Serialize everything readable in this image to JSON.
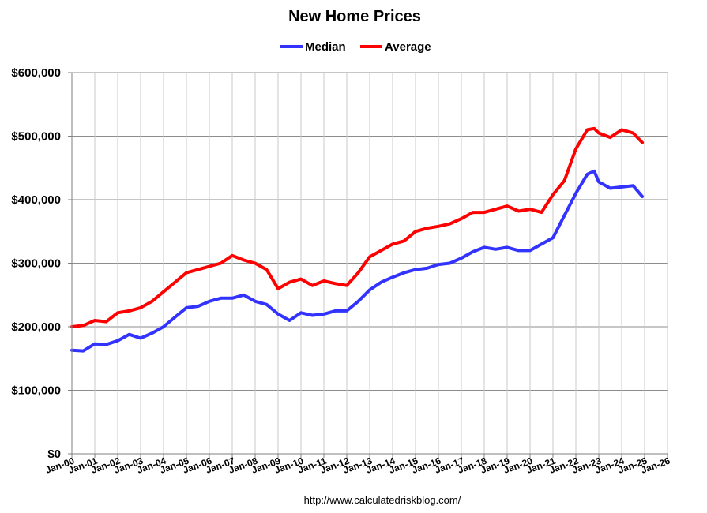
{
  "chart_data": {
    "type": "line",
    "title": "New Home Prices",
    "source_text": "http://www.calculatedriskblog.com/",
    "y_tick_labels": [
      "$0",
      "$100,000",
      "$200,000",
      "$300,000",
      "$400,000",
      "$500,000",
      "$600,000"
    ],
    "y_ticks": [
      0,
      100000,
      200000,
      300000,
      400000,
      500000,
      600000
    ],
    "ylim": [
      0,
      600000
    ],
    "x_tick_labels": [
      "Jan-00",
      "Jan-01",
      "Jan-02",
      "Jan-03",
      "Jan-04",
      "Jan-05",
      "Jan-06",
      "Jan-07",
      "Jan-08",
      "Jan-09",
      "Jan-10",
      "Jan-11",
      "Jan-12",
      "Jan-13",
      "Jan-14",
      "Jan-15",
      "Jan-16",
      "Jan-17",
      "Jan-18",
      "Jan-19",
      "Jan-20",
      "Jan-21",
      "Jan-22",
      "Jan-23",
      "Jan-24",
      "Jan-25",
      "Jan-26"
    ],
    "xlim": [
      2000,
      2026
    ],
    "grid": true,
    "legend_position": "top-center",
    "series": [
      {
        "name": "Median",
        "color": "#3333ff",
        "x": [
          2000.0,
          2000.5,
          2001.0,
          2001.5,
          2002.0,
          2002.5,
          2003.0,
          2003.5,
          2004.0,
          2004.5,
          2005.0,
          2005.5,
          2006.0,
          2006.5,
          2007.0,
          2007.5,
          2008.0,
          2008.5,
          2009.0,
          2009.5,
          2010.0,
          2010.5,
          2011.0,
          2011.5,
          2012.0,
          2012.5,
          2013.0,
          2013.5,
          2014.0,
          2014.5,
          2015.0,
          2015.5,
          2016.0,
          2016.5,
          2017.0,
          2017.5,
          2018.0,
          2018.5,
          2019.0,
          2019.5,
          2020.0,
          2020.5,
          2021.0,
          2021.5,
          2022.0,
          2022.5,
          2022.8,
          2023.0,
          2023.5,
          2024.0,
          2024.5,
          2024.9
        ],
        "values": [
          163000,
          162000,
          173000,
          172000,
          178000,
          188000,
          182000,
          190000,
          200000,
          215000,
          230000,
          232000,
          240000,
          245000,
          245000,
          250000,
          240000,
          235000,
          220000,
          210000,
          222000,
          218000,
          220000,
          225000,
          225000,
          240000,
          258000,
          270000,
          278000,
          285000,
          290000,
          292000,
          298000,
          300000,
          308000,
          318000,
          325000,
          322000,
          325000,
          320000,
          320000,
          330000,
          340000,
          375000,
          410000,
          440000,
          445000,
          428000,
          418000,
          420000,
          422000,
          405000
        ]
      },
      {
        "name": "Average",
        "color": "#ff0000",
        "x": [
          2000.0,
          2000.5,
          2001.0,
          2001.5,
          2002.0,
          2002.5,
          2003.0,
          2003.5,
          2004.0,
          2004.5,
          2005.0,
          2005.5,
          2006.0,
          2006.5,
          2007.0,
          2007.5,
          2008.0,
          2008.5,
          2009.0,
          2009.5,
          2010.0,
          2010.5,
          2011.0,
          2011.5,
          2012.0,
          2012.5,
          2013.0,
          2013.5,
          2014.0,
          2014.5,
          2015.0,
          2015.5,
          2016.0,
          2016.5,
          2017.0,
          2017.5,
          2018.0,
          2018.5,
          2019.0,
          2019.5,
          2020.0,
          2020.5,
          2021.0,
          2021.5,
          2022.0,
          2022.5,
          2022.8,
          2023.0,
          2023.5,
          2024.0,
          2024.5,
          2024.9
        ],
        "values": [
          200000,
          202000,
          210000,
          208000,
          222000,
          225000,
          230000,
          240000,
          255000,
          270000,
          285000,
          290000,
          295000,
          300000,
          312000,
          305000,
          300000,
          290000,
          260000,
          270000,
          275000,
          265000,
          272000,
          268000,
          265000,
          285000,
          310000,
          320000,
          330000,
          335000,
          350000,
          355000,
          358000,
          362000,
          370000,
          380000,
          380000,
          385000,
          390000,
          382000,
          385000,
          380000,
          408000,
          430000,
          480000,
          510000,
          512000,
          505000,
          498000,
          510000,
          505000,
          490000
        ]
      }
    ]
  }
}
